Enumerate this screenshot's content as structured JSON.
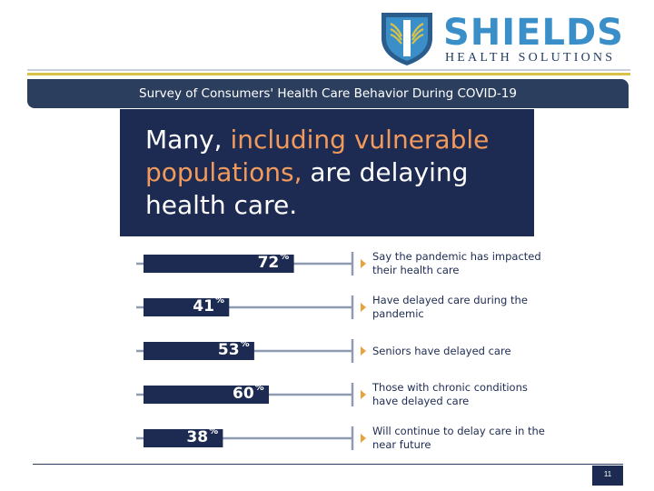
{
  "logo": {
    "name": "SHIELDS",
    "subtitle": "HEALTH SOLUTIONS",
    "colors": {
      "primary": "#3a8fc9",
      "dark": "#1f3a5f",
      "accent": "#d8c24a"
    }
  },
  "banner": {
    "title": "Survey of Consumers' Health Care Behavior During COVID-19"
  },
  "headline": {
    "part1": "Many, ",
    "part2": "including vulnerable populations,",
    "part3": " are delaying health care."
  },
  "chart_data": {
    "type": "bar",
    "orientation": "horizontal",
    "unit": "%",
    "categories": [
      "Say the pandemic has impacted their health care",
      "Have delayed care during the pandemic",
      "Seniors have delayed care",
      "Those with chronic conditions have delayed care",
      "Will continue to delay care in the near future"
    ],
    "values": [
      72,
      41,
      53,
      60,
      38
    ],
    "xlim": [
      0,
      100
    ],
    "colors": {
      "bar": "#1d2b52",
      "line": "#8f9bb3",
      "marker": "#e8a23c"
    }
  },
  "footer": {
    "page": "11"
  }
}
